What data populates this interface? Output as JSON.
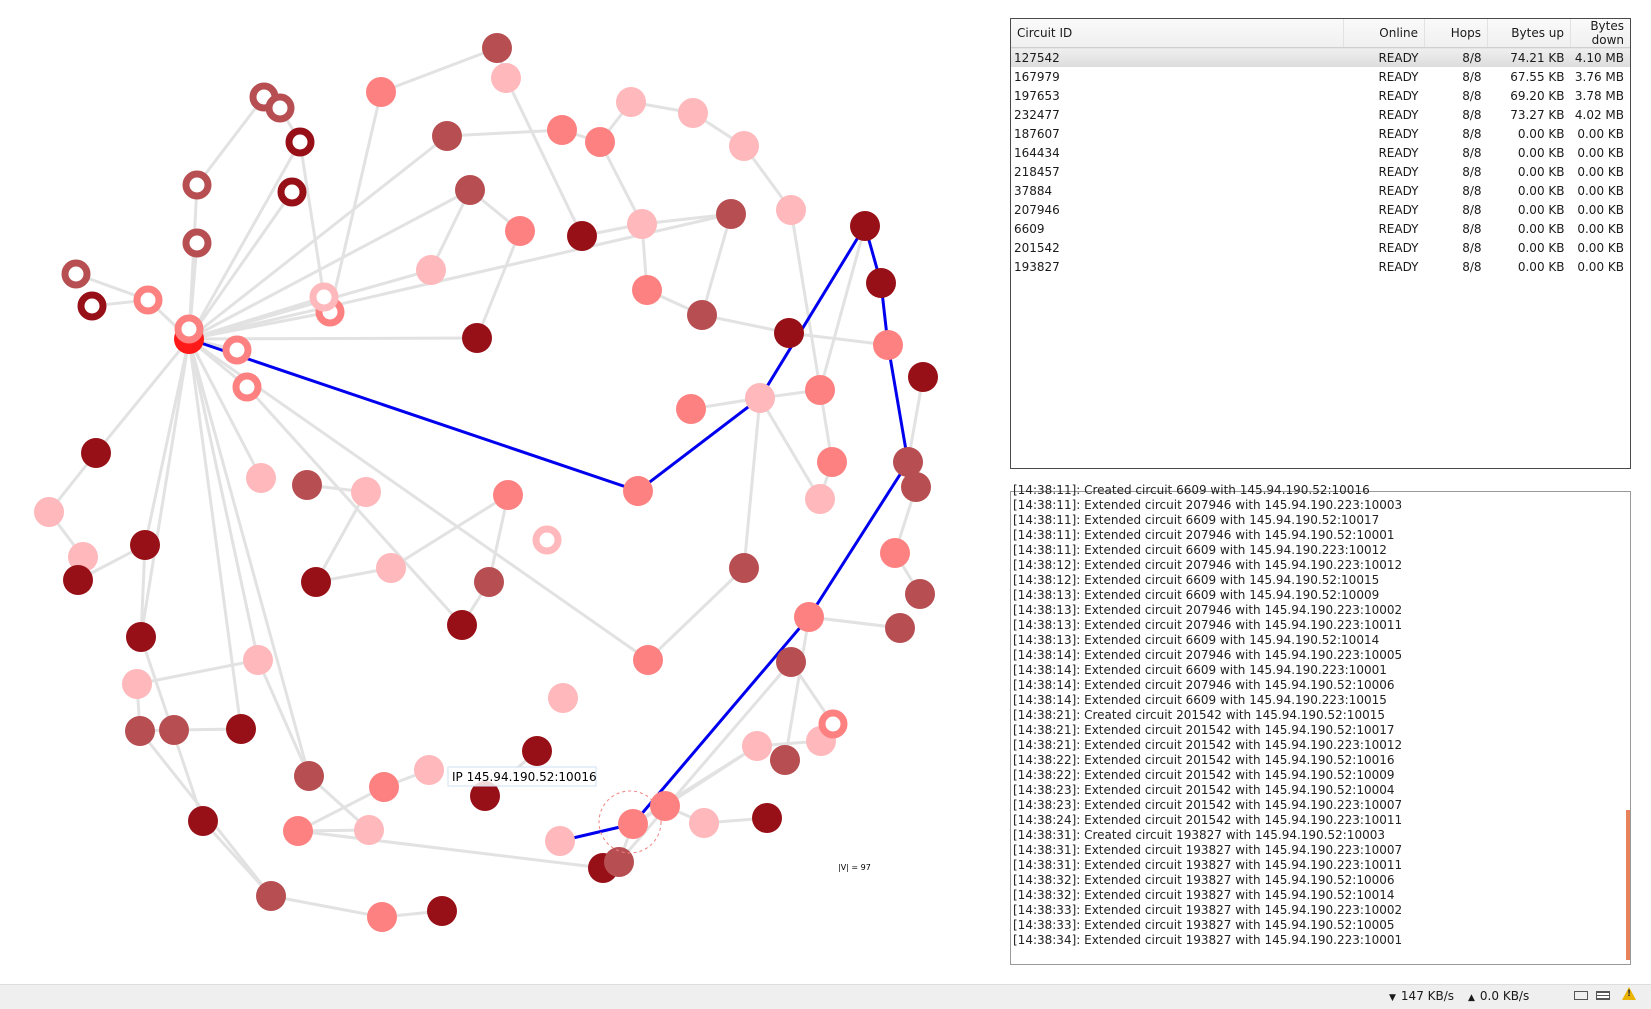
{
  "graph": {
    "vertex_count_label": "|V| = 97",
    "tooltip": "IP 145.94.190.52:10016"
  },
  "circuits": {
    "headers": [
      "Circuit ID",
      "Online",
      "Hops",
      "Bytes up",
      "Bytes down"
    ],
    "rows": [
      [
        "127542",
        "READY",
        "8/8",
        "74.21 KB",
        "4.10 MB"
      ],
      [
        "167979",
        "READY",
        "8/8",
        "67.55 KB",
        "3.76 MB"
      ],
      [
        "197653",
        "READY",
        "8/8",
        "69.20 KB",
        "3.78 MB"
      ],
      [
        "232477",
        "READY",
        "8/8",
        "73.27 KB",
        "4.02 MB"
      ],
      [
        "187607",
        "READY",
        "8/8",
        "0.00 KB",
        "0.00 KB"
      ],
      [
        "164434",
        "READY",
        "8/8",
        "0.00 KB",
        "0.00 KB"
      ],
      [
        "218457",
        "READY",
        "8/8",
        "0.00 KB",
        "0.00 KB"
      ],
      [
        "37884",
        "READY",
        "8/8",
        "0.00 KB",
        "0.00 KB"
      ],
      [
        "207946",
        "READY",
        "8/8",
        "0.00 KB",
        "0.00 KB"
      ],
      [
        "6609",
        "READY",
        "8/8",
        "0.00 KB",
        "0.00 KB"
      ],
      [
        "201542",
        "READY",
        "8/8",
        "0.00 KB",
        "0.00 KB"
      ],
      [
        "193827",
        "READY",
        "8/8",
        "0.00 KB",
        "0.00 KB"
      ]
    ]
  },
  "log": {
    "lines": [
      "[14:38:11]: Created circuit 6609 with 145.94.190.52:10016",
      "[14:38:11]: Extended circuit 207946 with 145.94.190.223:10003",
      "[14:38:11]: Extended circuit 6609 with 145.94.190.52:10017",
      "[14:38:11]: Extended circuit 207946 with 145.94.190.52:10001",
      "[14:38:11]: Extended circuit 6609 with 145.94.190.223:10012",
      "[14:38:12]: Extended circuit 207946 with 145.94.190.223:10012",
      "[14:38:12]: Extended circuit 6609 with 145.94.190.52:10015",
      "[14:38:13]: Extended circuit 6609 with 145.94.190.52:10009",
      "[14:38:13]: Extended circuit 207946 with 145.94.190.223:10002",
      "[14:38:13]: Extended circuit 207946 with 145.94.190.223:10011",
      "[14:38:13]: Extended circuit 6609 with 145.94.190.52:10014",
      "[14:38:14]: Extended circuit 207946 with 145.94.190.223:10005",
      "[14:38:14]: Extended circuit 6609 with 145.94.190.223:10001",
      "[14:38:14]: Extended circuit 207946 with 145.94.190.52:10006",
      "[14:38:14]: Extended circuit 6609 with 145.94.190.223:10015",
      "[14:38:21]: Created circuit 201542 with 145.94.190.52:10015",
      "[14:38:21]: Extended circuit 201542 with 145.94.190.52:10017",
      "[14:38:21]: Extended circuit 201542 with 145.94.190.223:10012",
      "[14:38:22]: Extended circuit 201542 with 145.94.190.52:10016",
      "[14:38:22]: Extended circuit 201542 with 145.94.190.52:10009",
      "[14:38:23]: Extended circuit 201542 with 145.94.190.52:10004",
      "[14:38:23]: Extended circuit 201542 with 145.94.190.223:10007",
      "[14:38:24]: Extended circuit 201542 with 145.94.190.223:10011",
      "[14:38:31]: Created circuit 193827 with 145.94.190.52:10003",
      "[14:38:31]: Extended circuit 193827 with 145.94.190.223:10007",
      "[14:38:31]: Extended circuit 193827 with 145.94.190.223:10011",
      "[14:38:32]: Extended circuit 193827 with 145.94.190.52:10006",
      "[14:38:32]: Extended circuit 193827 with 145.94.190.52:10014",
      "[14:38:33]: Extended circuit 193827 with 145.94.190.223:10002",
      "[14:38:33]: Extended circuit 193827 with 145.94.190.52:10005",
      "[14:38:34]: Extended circuit 193827 with 145.94.190.223:10001"
    ]
  },
  "status_bar": {
    "download_rate": "147 KB/s",
    "upload_rate": "0.0 KB/s",
    "icons": [
      "download-arrow-icon",
      "upload-arrow-icon",
      "window-icon",
      "window-list-icon",
      "warning-icon"
    ]
  },
  "colors": {
    "edge": "#e2e2e2",
    "circuit_path": "#0000ee",
    "self_node": "#ff1a1a",
    "node_palette": [
      "#ffb8bb",
      "#fe8181",
      "#b74e52",
      "#981017"
    ],
    "log_scroll_thumb": "#e8825a"
  }
}
